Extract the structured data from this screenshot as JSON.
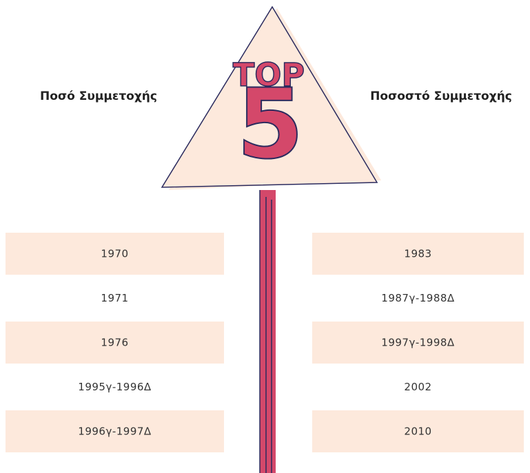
{
  "sign": {
    "top": "TOP",
    "number": "5"
  },
  "left": {
    "title": "Ποσό Συμμετοχής",
    "rows": [
      "1970",
      "1971",
      "1976",
      "1995γ-1996Δ",
      "1996γ-1997Δ"
    ]
  },
  "right": {
    "title": "Ποσοστό Συμμετοχής",
    "rows": [
      "1983",
      "1987γ-1988Δ",
      "1997γ-1998Δ",
      "2002",
      "2010"
    ]
  }
}
